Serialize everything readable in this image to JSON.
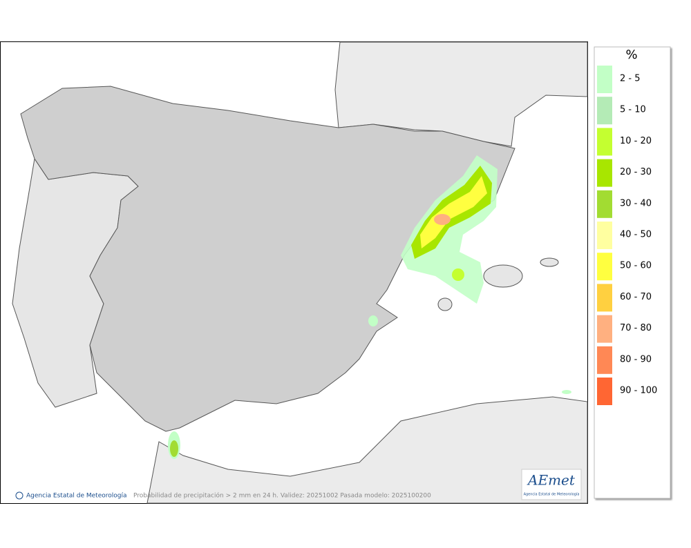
{
  "legend": {
    "title": "%",
    "items": [
      {
        "label": "2 - 5",
        "color": "#c2ffc6"
      },
      {
        "label": "5 - 10",
        "color": "#b4ebb6"
      },
      {
        "label": "10 - 20",
        "color": "#c4ff30"
      },
      {
        "label": "20 - 30",
        "color": "#a8e600"
      },
      {
        "label": "30 - 40",
        "color": "#a2dc32"
      },
      {
        "label": "40 - 50",
        "color": "#ffffa0"
      },
      {
        "label": "50 - 60",
        "color": "#ffff40"
      },
      {
        "label": "60 - 70",
        "color": "#ffd040"
      },
      {
        "label": "70 - 80",
        "color": "#ffb080"
      },
      {
        "label": "80 - 90",
        "color": "#ff8855"
      },
      {
        "label": "90 - 100",
        "color": "#ff6633"
      }
    ]
  },
  "footer": {
    "credit": "Agencia Estatal de Meteorología",
    "caption": "Probabilidad de precipitación > 2 mm en 24 h. Validez: 20251002 Pasada modelo: 2025100200"
  },
  "logo": {
    "name": "AEmet",
    "subtitle": "Agencia Estatal de Meteorología"
  }
}
